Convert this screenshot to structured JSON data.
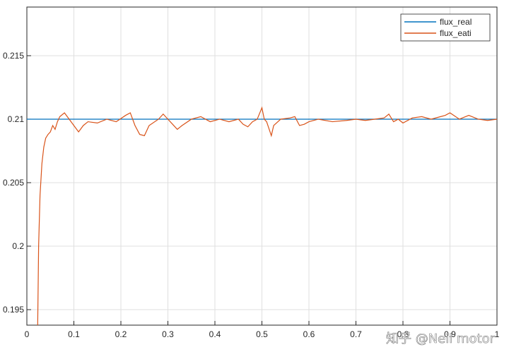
{
  "chart_data": {
    "type": "line",
    "xlim": [
      0,
      1
    ],
    "ylim": [
      0.19378,
      0.21883
    ],
    "xticks": [
      0,
      0.1,
      0.2,
      0.3,
      0.4,
      0.5,
      0.6,
      0.7,
      0.8,
      0.9,
      1
    ],
    "yticks": [
      0.195,
      0.2,
      0.205,
      0.21,
      0.215
    ],
    "grid": true,
    "legend": "upper right",
    "watermark": "知乎 @Neil motor",
    "series": [
      {
        "name": "flux_real",
        "color": "#0072bd",
        "x": [
          0,
          1
        ],
        "values": [
          0.21,
          0.21
        ]
      },
      {
        "name": "flux_eati",
        "color": "#d95319",
        "x": [
          0.023,
          0.025,
          0.028,
          0.032,
          0.036,
          0.04,
          0.045,
          0.05,
          0.055,
          0.06,
          0.065,
          0.07,
          0.08,
          0.09,
          0.1,
          0.11,
          0.12,
          0.13,
          0.15,
          0.17,
          0.19,
          0.21,
          0.22,
          0.23,
          0.24,
          0.25,
          0.26,
          0.28,
          0.29,
          0.3,
          0.31,
          0.32,
          0.33,
          0.35,
          0.37,
          0.39,
          0.41,
          0.43,
          0.45,
          0.46,
          0.47,
          0.48,
          0.49,
          0.5,
          0.505,
          0.51,
          0.52,
          0.525,
          0.54,
          0.56,
          0.57,
          0.58,
          0.59,
          0.6,
          0.62,
          0.65,
          0.68,
          0.7,
          0.72,
          0.74,
          0.76,
          0.77,
          0.78,
          0.79,
          0.8,
          0.82,
          0.84,
          0.86,
          0.88,
          0.89,
          0.9,
          0.92,
          0.94,
          0.96,
          0.98,
          1
        ],
        "values": [
          0.1937,
          0.2,
          0.204,
          0.2065,
          0.2078,
          0.2085,
          0.2088,
          0.209,
          0.2095,
          0.2092,
          0.2098,
          0.2102,
          0.2105,
          0.21,
          0.2095,
          0.209,
          0.2095,
          0.2098,
          0.2097,
          0.21,
          0.2098,
          0.2103,
          0.2105,
          0.2095,
          0.2088,
          0.2087,
          0.2095,
          0.21,
          0.2104,
          0.21,
          0.2096,
          0.2092,
          0.2095,
          0.21,
          0.2102,
          0.2098,
          0.21,
          0.2098,
          0.21,
          0.2096,
          0.2094,
          0.2098,
          0.21,
          0.2109,
          0.21,
          0.2098,
          0.2087,
          0.2095,
          0.21,
          0.2101,
          0.2102,
          0.2095,
          0.2096,
          0.2098,
          0.21,
          0.2098,
          0.2099,
          0.21,
          0.2099,
          0.21,
          0.2101,
          0.2104,
          0.2098,
          0.21,
          0.2097,
          0.2101,
          0.2102,
          0.21,
          0.2102,
          0.2103,
          0.2105,
          0.21,
          0.2103,
          0.21,
          0.2099,
          0.21
        ]
      }
    ]
  }
}
